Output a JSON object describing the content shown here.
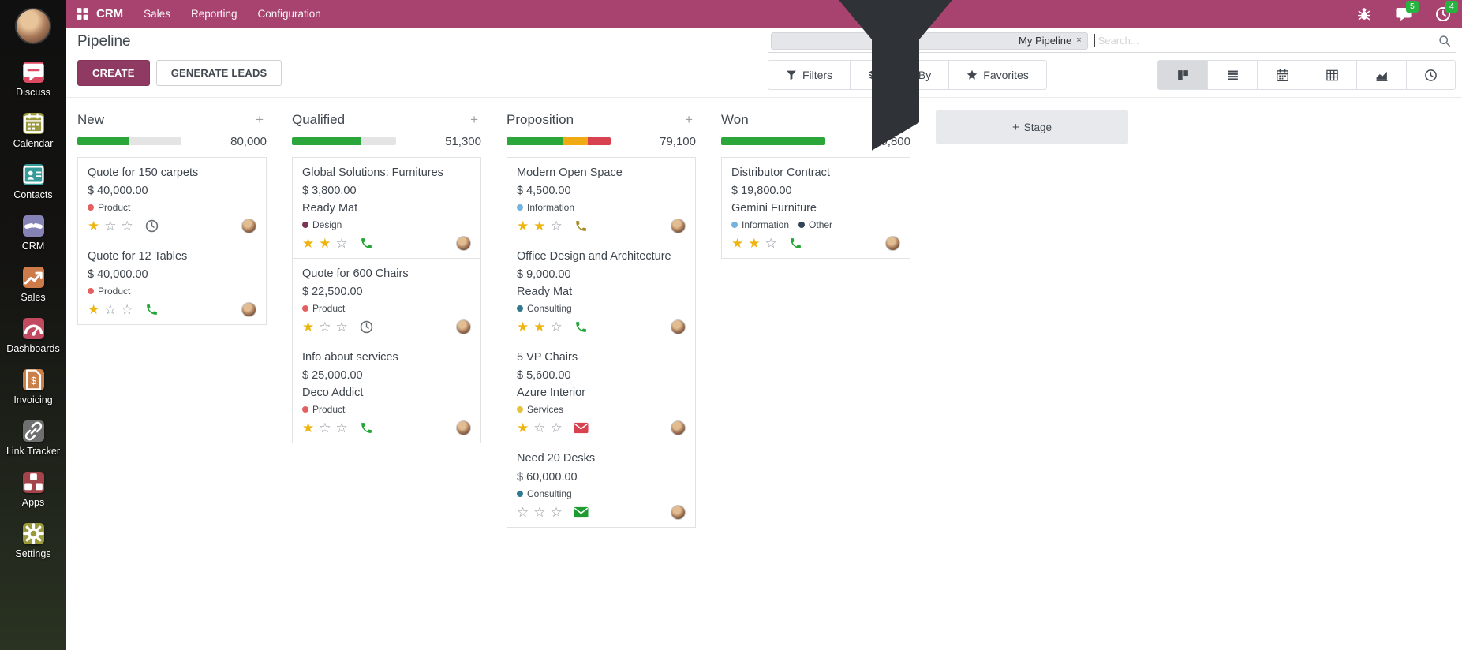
{
  "navbar": {
    "app_name": "CRM",
    "menus": [
      "Sales",
      "Reporting",
      "Configuration"
    ],
    "message_badge": "5",
    "activity_badge": "4",
    "color": "#a8436f"
  },
  "sidebar": {
    "items": [
      {
        "label": "Discuss",
        "icon": "chat-bubble",
        "color": "#dc4b63"
      },
      {
        "label": "Calendar",
        "icon": "calendar",
        "color": "#9a9a3d"
      },
      {
        "label": "Contacts",
        "icon": "contact-card",
        "color": "#359b9b"
      },
      {
        "label": "CRM",
        "icon": "handshake",
        "color": "#8583b6"
      },
      {
        "label": "Sales",
        "icon": "chart-up",
        "color": "#cd7c49"
      },
      {
        "label": "Dashboards",
        "icon": "gauge",
        "color": "#c24a60"
      },
      {
        "label": "Invoicing",
        "icon": "invoice",
        "color": "#c87f4a"
      },
      {
        "label": "Link Tracker",
        "icon": "link",
        "color": "#6f6f6f"
      },
      {
        "label": "Apps",
        "icon": "modules",
        "color": "#a4444a"
      },
      {
        "label": "Settings",
        "icon": "gear",
        "color": "#9a9a3d"
      }
    ]
  },
  "control_panel": {
    "title": "Pipeline",
    "create_label": "CREATE",
    "generate_label": "GENERATE LEADS",
    "search": {
      "facet_label": "My Pipeline",
      "remove_label": "×",
      "placeholder": "Search...",
      "value": ""
    },
    "filter_buttons": [
      {
        "label": "Filters",
        "icon": "funnel"
      },
      {
        "label": "Group By",
        "icon": "layers"
      },
      {
        "label": "Favorites",
        "icon": "star"
      }
    ],
    "view_switcher": [
      "kanban",
      "list",
      "calendar",
      "pivot",
      "graph",
      "activity"
    ],
    "active_view": "kanban"
  },
  "kanban": {
    "add_stage_label": "Stage",
    "add_stage_plus": "+",
    "column_plus": "+",
    "columns": [
      {
        "name": "New",
        "amount": "80,000",
        "progress": [
          {
            "color": "#2aa63b",
            "pct": 49
          }
        ],
        "cards": [
          {
            "title": "Quote for 150 carpets",
            "amount": "$ 40,000.00",
            "tags": [
              {
                "label": "Product",
                "color": "#e4605e"
              }
            ],
            "stars": 1,
            "activity": {
              "icon": "clock",
              "color": "#6a6f75"
            }
          },
          {
            "title": "Quote for 12 Tables",
            "amount": "$ 40,000.00",
            "tags": [
              {
                "label": "Product",
                "color": "#e4605e"
              }
            ],
            "stars": 1,
            "activity": {
              "icon": "phone",
              "color": "#23a636"
            }
          }
        ]
      },
      {
        "name": "Qualified",
        "amount": "51,300",
        "progress": [
          {
            "color": "#2aa63b",
            "pct": 67
          }
        ],
        "cards": [
          {
            "title": "Global Solutions: Furnitures",
            "amount": "$ 3,800.00",
            "partner": "Ready Mat",
            "tags": [
              {
                "label": "Design",
                "color": "#7d3457"
              }
            ],
            "stars": 2,
            "activity": {
              "icon": "phone",
              "color": "#23a636"
            }
          },
          {
            "title": "Quote for 600 Chairs",
            "amount": "$ 22,500.00",
            "tags": [
              {
                "label": "Product",
                "color": "#e4605e"
              }
            ],
            "stars": 1,
            "activity": {
              "icon": "clock",
              "color": "#6a6f75"
            }
          },
          {
            "title": "Info about services",
            "amount": "$ 25,000.00",
            "partner": "Deco Addict",
            "tags": [
              {
                "label": "Product",
                "color": "#e4605e"
              }
            ],
            "stars": 1,
            "activity": {
              "icon": "phone",
              "color": "#23a636"
            }
          }
        ]
      },
      {
        "name": "Proposition",
        "amount": "79,100",
        "progress": [
          {
            "color": "#2aa63b",
            "pct": 54
          },
          {
            "color": "#f0ab14",
            "pct": 24
          },
          {
            "color": "#d8414f",
            "pct": 22
          }
        ],
        "cards": [
          {
            "title": "Modern Open Space",
            "amount": "$ 4,500.00",
            "tags": [
              {
                "label": "Information",
                "color": "#74b3e0"
              }
            ],
            "stars": 2,
            "activity": {
              "icon": "phone",
              "color": "#a58d2b"
            }
          },
          {
            "title": "Office Design and Architecture",
            "amount": "$ 9,000.00",
            "partner": "Ready Mat",
            "tags": [
              {
                "label": "Consulting",
                "color": "#31798e"
              }
            ],
            "stars": 2,
            "activity": {
              "icon": "phone",
              "color": "#23a636"
            }
          },
          {
            "title": "5 VP Chairs",
            "amount": "$ 5,600.00",
            "partner": "Azure Interior",
            "tags": [
              {
                "label": "Services",
                "color": "#e5c33e"
              }
            ],
            "stars": 1,
            "activity": {
              "icon": "envelope",
              "color": "#d8414f"
            }
          },
          {
            "title": "Need 20 Desks",
            "amount": "$ 60,000.00",
            "tags": [
              {
                "label": "Consulting",
                "color": "#31798e"
              }
            ],
            "stars": 0,
            "activity": {
              "icon": "envelope",
              "color": "#1f9c31"
            }
          }
        ]
      },
      {
        "name": "Won",
        "amount": "19,800",
        "progress": [
          {
            "color": "#2aa63b",
            "pct": 100
          }
        ],
        "cards": [
          {
            "title": "Distributor Contract",
            "amount": "$ 19,800.00",
            "partner": "Gemini Furniture",
            "tags": [
              {
                "label": "Information",
                "color": "#74b3e0"
              },
              {
                "label": "Other",
                "color": "#32435a"
              }
            ],
            "stars": 2,
            "activity": {
              "icon": "phone",
              "color": "#23a636"
            }
          }
        ]
      }
    ]
  }
}
